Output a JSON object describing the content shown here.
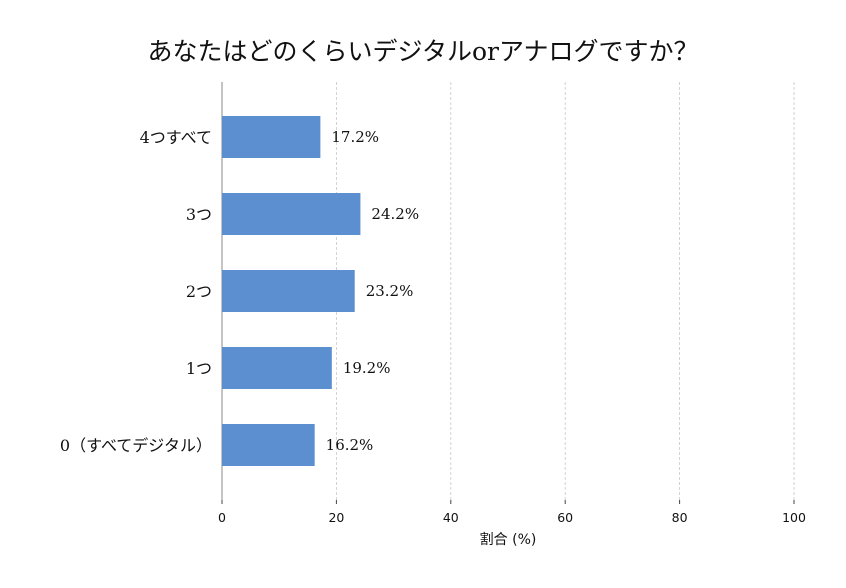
{
  "chart_data": {
    "type": "bar",
    "orientation": "horizontal",
    "title": "あなたはどのくらいデジタルorアナログですか？",
    "xlabel": "割合 (%)",
    "ylabel": "",
    "categories": [
      "4つすべて",
      "3つ",
      "2つ",
      "1つ",
      "0（すべてデジタル）"
    ],
    "values": [
      17.2,
      24.2,
      23.2,
      19.2,
      16.2
    ],
    "data_labels": [
      "17.2%",
      "24.2%",
      "23.2%",
      "19.2%",
      "16.2%"
    ],
    "xlim": [
      0,
      100
    ],
    "xticks": [
      0,
      20,
      40,
      60,
      80,
      100
    ],
    "grid": "x-dashed",
    "bar_color": "#5b8fd0",
    "legend": "none"
  }
}
